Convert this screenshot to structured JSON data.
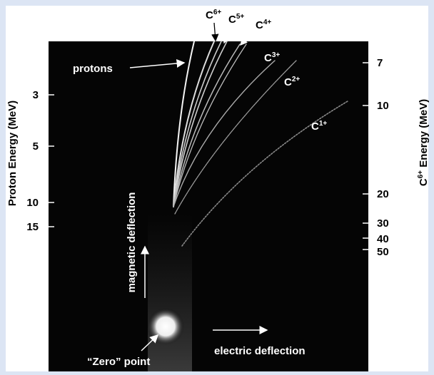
{
  "left_axis": {
    "title": "Proton Energy (MeV)",
    "ticks": [
      "3",
      "5",
      "10",
      "15"
    ]
  },
  "right_axis": {
    "title_ion": "C",
    "title_charge": "6+",
    "title_rest": " Energy (MeV)",
    "ticks": [
      "7",
      "10",
      "20",
      "30",
      "40",
      "50"
    ]
  },
  "track_labels": {
    "protons": "protons",
    "ions": [
      {
        "base": "C",
        "charge": "6+"
      },
      {
        "base": "C",
        "charge": "5+"
      },
      {
        "base": "C",
        "charge": "4+"
      },
      {
        "base": "C",
        "charge": "3+"
      },
      {
        "base": "C",
        "charge": "2+"
      },
      {
        "base": "C",
        "charge": "1+"
      }
    ]
  },
  "annotations": {
    "magnetic": "magnetic deflection",
    "electric": "electric deflection",
    "zero": "“Zero” point"
  }
}
